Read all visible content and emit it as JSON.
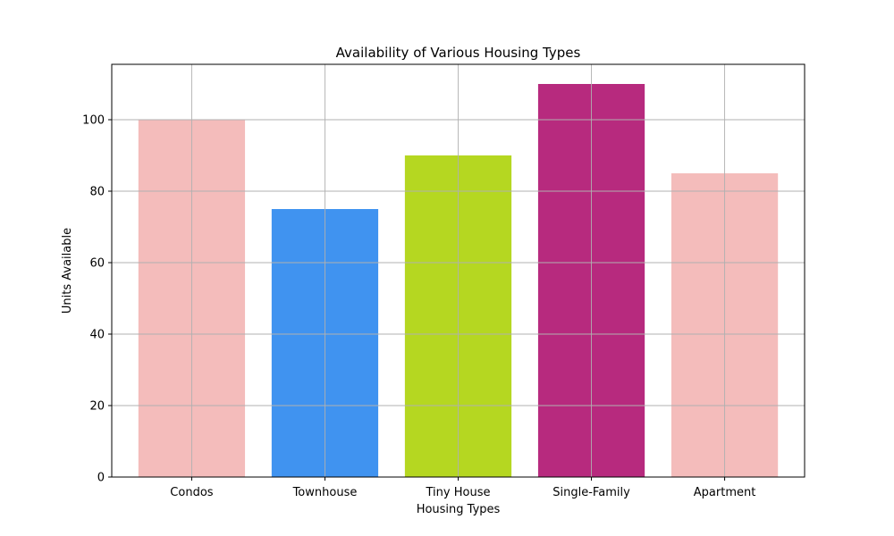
{
  "chart_data": {
    "type": "bar",
    "title": "Availability of Various Housing Types",
    "xlabel": "Housing Types",
    "ylabel": "Units Available",
    "categories": [
      "Condos",
      "Townhouse",
      "Tiny House",
      "Single-Family",
      "Apartment"
    ],
    "values": [
      100,
      75,
      90,
      110,
      85
    ],
    "colors": [
      "#f4bcbb",
      "#4093f0",
      "#b5d721",
      "#b72a7e",
      "#f4bcbb"
    ],
    "ylim": [
      0,
      115.5
    ],
    "yticks": [
      0,
      20,
      40,
      60,
      80,
      100
    ],
    "grid": true
  }
}
